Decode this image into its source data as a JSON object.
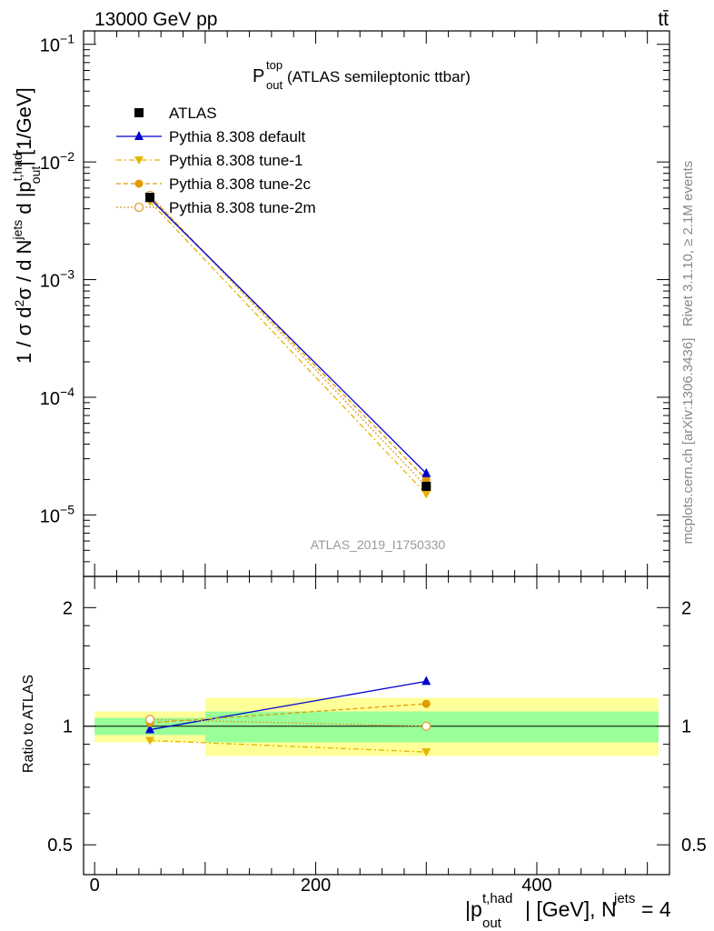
{
  "header": {
    "energy_label": "13000 GeV pp",
    "process_label": "tt̄"
  },
  "side_labels": {
    "rivet": "Rivet 3.1.10, ≥ 2.1M events",
    "mcplots": "mcplots.cern.ch [arXiv:1306.3436]"
  },
  "watermark": "ATLAS_2019_I1750330",
  "colors": {
    "atlas": "#000000",
    "default": "#0000cc",
    "tune1": "#e6b400",
    "tune2c": "#e09b00",
    "tune2m": "#d9a030",
    "band_inner": "#99ff99",
    "band_outer": "#ffff99"
  },
  "chart_data": [
    {
      "type": "line",
      "panel": "main",
      "title_main": "P",
      "title_sup": "top",
      "title_sub": "out",
      "title_rest": " (ATLAS semileptonic ttbar)",
      "ylabel": "1 / σ d²σ / d N^jets d |p_out^t,had| [1/GeV]",
      "yscale": "log",
      "ylim": [
        3e-06,
        0.13
      ],
      "xlim": [
        -10,
        520
      ],
      "yticks": [
        {
          "value": 1e-05,
          "base": "10",
          "exp": "−5"
        },
        {
          "value": 0.0001,
          "base": "10",
          "exp": "−4"
        },
        {
          "value": 0.001,
          "base": "10",
          "exp": "−3"
        },
        {
          "value": 0.01,
          "base": "10",
          "exp": "−2"
        },
        {
          "value": 0.1,
          "base": "10",
          "exp": "−1"
        }
      ],
      "legend_position": "top-left",
      "series": [
        {
          "name": "ATLAS",
          "key": "atlas",
          "x": [
            50,
            300
          ],
          "y": [
            0.005,
            1.75e-05
          ]
        },
        {
          "name": "Pythia 8.308 default",
          "key": "default",
          "x": [
            50,
            300
          ],
          "y": [
            0.0049,
            2.25e-05
          ]
        },
        {
          "name": "Pythia 8.308 tune-1",
          "key": "tune1",
          "x": [
            50,
            300
          ],
          "y": [
            0.0046,
            1.5e-05
          ]
        },
        {
          "name": "Pythia 8.308 tune-2c",
          "key": "tune2c",
          "x": [
            50,
            300
          ],
          "y": [
            0.0051,
            2e-05
          ]
        },
        {
          "name": "Pythia 8.308 tune-2m",
          "key": "tune2m",
          "x": [
            50,
            300
          ],
          "y": [
            0.0052,
            1.75e-05
          ]
        }
      ]
    },
    {
      "type": "line",
      "panel": "ratio",
      "ylabel": "Ratio to ATLAS",
      "xlabel_main": "|p",
      "xlabel_sup": "t,had",
      "xlabel_sub": "out",
      "xlabel_mid": "| [GeV], N",
      "xlabel_sup2": "jets",
      "xlabel_end": " = 4",
      "yscale": "log",
      "ylim": [
        0.42,
        2.4
      ],
      "xlim": [
        -10,
        520
      ],
      "xticks": [
        0,
        200,
        400
      ],
      "yticks": [
        0.5,
        1,
        2
      ],
      "bands": [
        {
          "x": [
            0,
            100
          ],
          "inner": [
            0.95,
            1.05
          ],
          "outer": [
            0.91,
            1.09
          ]
        },
        {
          "x": [
            100,
            510
          ],
          "inner": [
            0.91,
            1.09
          ],
          "outer": [
            0.84,
            1.18
          ]
        }
      ],
      "series": [
        {
          "name": "Pythia 8.308 default",
          "key": "default",
          "x": [
            50,
            300
          ],
          "y": [
            0.98,
            1.3
          ]
        },
        {
          "name": "Pythia 8.308 tune-1",
          "key": "tune1",
          "x": [
            50,
            300
          ],
          "y": [
            0.92,
            0.86
          ]
        },
        {
          "name": "Pythia 8.308 tune-2c",
          "key": "tune2c",
          "x": [
            50,
            300
          ],
          "y": [
            1.02,
            1.14
          ]
        },
        {
          "name": "Pythia 8.308 tune-2m",
          "key": "tune2m",
          "x": [
            50,
            300
          ],
          "y": [
            1.04,
            1.0
          ]
        }
      ]
    }
  ]
}
